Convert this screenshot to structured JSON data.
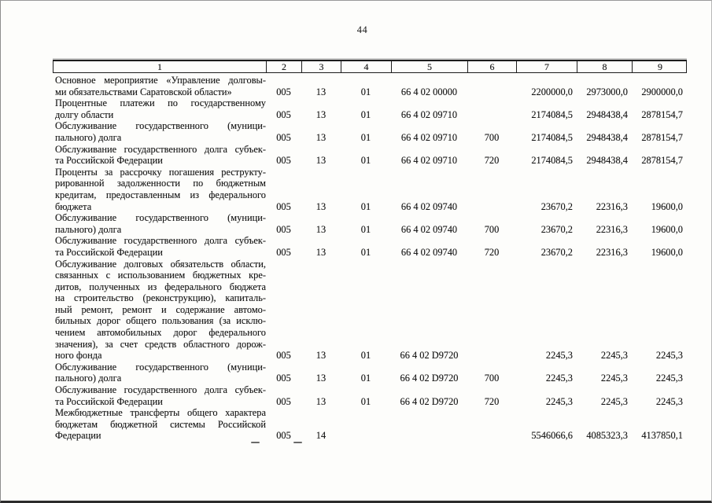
{
  "page": {
    "number": "44"
  },
  "table": {
    "header": [
      "1",
      "2",
      "3",
      "4",
      "5",
      "6",
      "7",
      "8",
      "9"
    ],
    "rows": [
      {
        "name_lines": [
          "Основное мероприятие «Управление долговы-",
          "ми обязательствами Саратовской области»"
        ],
        "cells": [
          "005",
          "13",
          "01",
          "66 4 02 00000",
          "",
          "2200000,0",
          "2973000,0",
          "2900000,0"
        ]
      },
      {
        "name_lines": [
          "Процентные платежи по государственному",
          "долгу области"
        ],
        "cells": [
          "005",
          "13",
          "01",
          "66 4 02 09710",
          "",
          "2174084,5",
          "2948438,4",
          "2878154,7"
        ]
      },
      {
        "name_lines": [
          "Обслуживание государственного (муници-",
          "пального) долга"
        ],
        "cells": [
          "005",
          "13",
          "01",
          "66 4 02 09710",
          "700",
          "2174084,5",
          "2948438,4",
          "2878154,7"
        ]
      },
      {
        "name_lines": [
          "Обслуживание государственного долга субъек-",
          "та Российской Федерации"
        ],
        "cells": [
          "005",
          "13",
          "01",
          "66 4 02 09710",
          "720",
          "2174084,5",
          "2948438,4",
          "2878154,7"
        ]
      },
      {
        "name_lines": [
          "Проценты за рассрочку погашения реструкту-",
          "рированной задолженности по бюджетным",
          "кредитам, предоставленным из федерального",
          "бюджета"
        ],
        "cells": [
          "005",
          "13",
          "01",
          "66 4 02 09740",
          "",
          "23670,2",
          "22316,3",
          "19600,0"
        ]
      },
      {
        "name_lines": [
          "Обслуживание государственного (муници-",
          "пального) долга"
        ],
        "cells": [
          "005",
          "13",
          "01",
          "66 4 02 09740",
          "700",
          "23670,2",
          "22316,3",
          "19600,0"
        ]
      },
      {
        "name_lines": [
          "Обслуживание государственного долга субъек-",
          "та Российской Федерации"
        ],
        "cells": [
          "005",
          "13",
          "01",
          "66 4 02 09740",
          "720",
          "23670,2",
          "22316,3",
          "19600,0"
        ]
      },
      {
        "name_lines": [
          "Обслуживание долговых обязательств области,",
          "связанных с использованием бюджетных кре-",
          "дитов, полученных из федерального бюджета",
          "на строительство (реконструкцию), капиталь-",
          "ный ремонт, ремонт и содержание автомо-",
          "бильных дорог общего пользования (за исклю-",
          "чением автомобильных дорог федерального",
          "значения), за счет средств областного дорож-",
          "ного фонда"
        ],
        "cells": [
          "005",
          "13",
          "01",
          "66 4 02 D9720",
          "",
          "2245,3",
          "2245,3",
          "2245,3"
        ]
      },
      {
        "name_lines": [
          "Обслуживание государственного (муници-",
          "пального) долга"
        ],
        "cells": [
          "005",
          "13",
          "01",
          "66 4 02 D9720",
          "700",
          "2245,3",
          "2245,3",
          "2245,3"
        ]
      },
      {
        "name_lines": [
          "Обслуживание государственного долга субъек-",
          "та Российской Федерации"
        ],
        "cells": [
          "005",
          "13",
          "01",
          "66 4 02 D9720",
          "720",
          "2245,3",
          "2245,3",
          "2245,3"
        ]
      },
      {
        "name_lines": [
          "Межбюджетные трансферты общего характера",
          "бюджетам бюджетной системы Российской",
          "Федерации"
        ],
        "cells": [
          "005",
          "14",
          "",
          "",
          "",
          "5546066,6",
          "4085323,3",
          "4137850,1"
        ]
      }
    ]
  }
}
